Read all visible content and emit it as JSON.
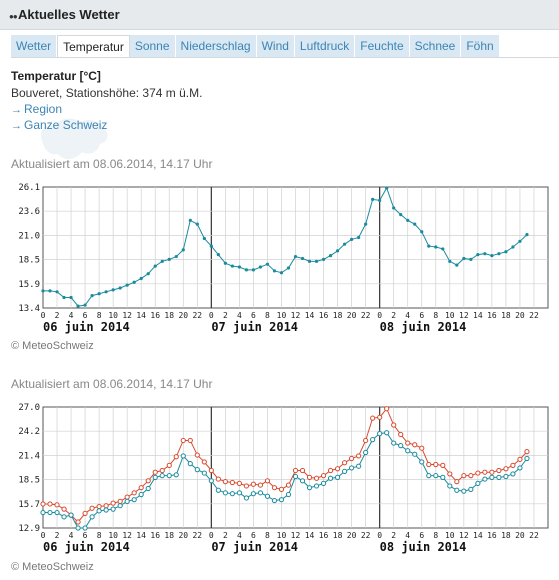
{
  "header": {
    "title": "Aktuelles Wetter"
  },
  "tabs": [
    {
      "label": "Wetter",
      "active": false
    },
    {
      "label": "Temperatur",
      "active": true
    },
    {
      "label": "Sonne",
      "active": false
    },
    {
      "label": "Niederschlag",
      "active": false
    },
    {
      "label": "Wind",
      "active": false
    },
    {
      "label": "Luftdruck",
      "active": false
    },
    {
      "label": "Feuchte",
      "active": false
    },
    {
      "label": "Schnee",
      "active": false
    },
    {
      "label": "Föhn",
      "active": false
    }
  ],
  "info": {
    "title": "Temperatur [°C]",
    "station": "Bouveret, Stationshöhe: 374 m ü.M.",
    "links": [
      "Region",
      "Ganze Schweiz"
    ]
  },
  "colors": {
    "teal": "#1a8b9e",
    "red": "#d9492e",
    "link": "#3c84b3"
  },
  "chart_data": [
    {
      "type": "line",
      "updated": "Aktualisiert am 08.06.2014, 14.17 Uhr",
      "credit": "© MeteoSchweiz",
      "ylim": [
        13.4,
        26.1
      ],
      "yticks": [
        "26.1",
        "23.6",
        "21.0",
        "18.5",
        "15.9",
        "13.4"
      ],
      "hour_labels": [
        "0",
        "2",
        "4",
        "6",
        "8",
        "10",
        "12",
        "14",
        "16",
        "18",
        "20",
        "22"
      ],
      "days": [
        "06 juin 2014",
        "07 juin 2014",
        "08 juin 2014"
      ],
      "grid": true,
      "series": [
        {
          "color": "#1a8b9e",
          "values": [
            15.2,
            15.2,
            15.1,
            14.5,
            14.5,
            13.6,
            13.7,
            14.7,
            14.9,
            15.1,
            15.3,
            15.5,
            15.8,
            16.1,
            16.5,
            17.0,
            17.8,
            18.3,
            18.5,
            18.8,
            19.5,
            22.6,
            22.2,
            20.7,
            19.9,
            19.0,
            18.1,
            17.8,
            17.7,
            17.4,
            17.4,
            17.7,
            18.0,
            17.3,
            17.1,
            17.6,
            18.8,
            18.6,
            18.3,
            18.3,
            18.5,
            18.9,
            19.4,
            20.1,
            20.6,
            20.8,
            22.2,
            24.8,
            24.7,
            26.0,
            23.9,
            23.2,
            22.6,
            22.2,
            21.4,
            19.9,
            19.8,
            19.6,
            18.3,
            17.9,
            18.6,
            18.5,
            19.0,
            19.1,
            18.9,
            19.1,
            19.3,
            19.8,
            20.4,
            21.1
          ]
        }
      ]
    },
    {
      "type": "line",
      "updated": "Aktualisiert am 08.06.2014, 14.17 Uhr",
      "credit": "© MeteoSchweiz",
      "ylim": [
        12.9,
        27.0
      ],
      "yticks": [
        "27.0",
        "24.2",
        "21.4",
        "18.5",
        "15.7",
        "12.9"
      ],
      "hour_labels": [
        "0",
        "2",
        "4",
        "6",
        "8",
        "10",
        "12",
        "14",
        "16",
        "18",
        "20",
        "22"
      ],
      "days": [
        "06 juin 2014",
        "07 juin 2014",
        "08 juin 2014"
      ],
      "grid": true,
      "series": [
        {
          "color": "#d9492e",
          "values": [
            15.7,
            15.7,
            15.6,
            15.1,
            14.4,
            13.6,
            14.6,
            15.2,
            15.4,
            15.5,
            15.8,
            16.0,
            16.5,
            17.0,
            17.6,
            18.4,
            19.4,
            19.6,
            20.2,
            21.2,
            23.1,
            23.1,
            21.4,
            20.6,
            19.6,
            18.6,
            18.3,
            18.2,
            18.1,
            17.8,
            18.0,
            17.9,
            18.4,
            17.6,
            17.4,
            17.9,
            19.6,
            19.6,
            18.8,
            18.7,
            19.0,
            19.6,
            19.8,
            20.5,
            21.0,
            21.3,
            23.1,
            25.7,
            25.8,
            26.8,
            24.9,
            23.8,
            22.8,
            22.6,
            22.2,
            20.3,
            20.3,
            20.2,
            19.2,
            18.3,
            19.0,
            19.0,
            19.3,
            19.4,
            19.4,
            19.6,
            19.8,
            20.2,
            20.9,
            21.8
          ]
        },
        {
          "color": "#1a8b9e",
          "values": [
            14.7,
            14.7,
            14.7,
            14.2,
            14.4,
            12.9,
            12.9,
            14.2,
            14.9,
            15.0,
            15.1,
            15.5,
            16.0,
            16.2,
            16.8,
            17.5,
            18.8,
            19.0,
            19.0,
            19.1,
            21.3,
            20.4,
            19.7,
            19.3,
            18.4,
            17.3,
            17.0,
            16.9,
            17.0,
            16.4,
            16.9,
            17.0,
            16.6,
            16.1,
            16.2,
            16.8,
            18.9,
            18.4,
            17.6,
            17.8,
            18.1,
            18.7,
            18.8,
            19.5,
            19.9,
            20.1,
            21.7,
            23.2,
            23.9,
            24.0,
            22.8,
            22.5,
            21.9,
            21.5,
            20.6,
            19.0,
            19.0,
            18.8,
            17.8,
            17.3,
            17.2,
            17.4,
            18.1,
            18.6,
            18.8,
            18.8,
            18.9,
            19.2,
            19.9,
            21.0
          ]
        }
      ]
    }
  ]
}
